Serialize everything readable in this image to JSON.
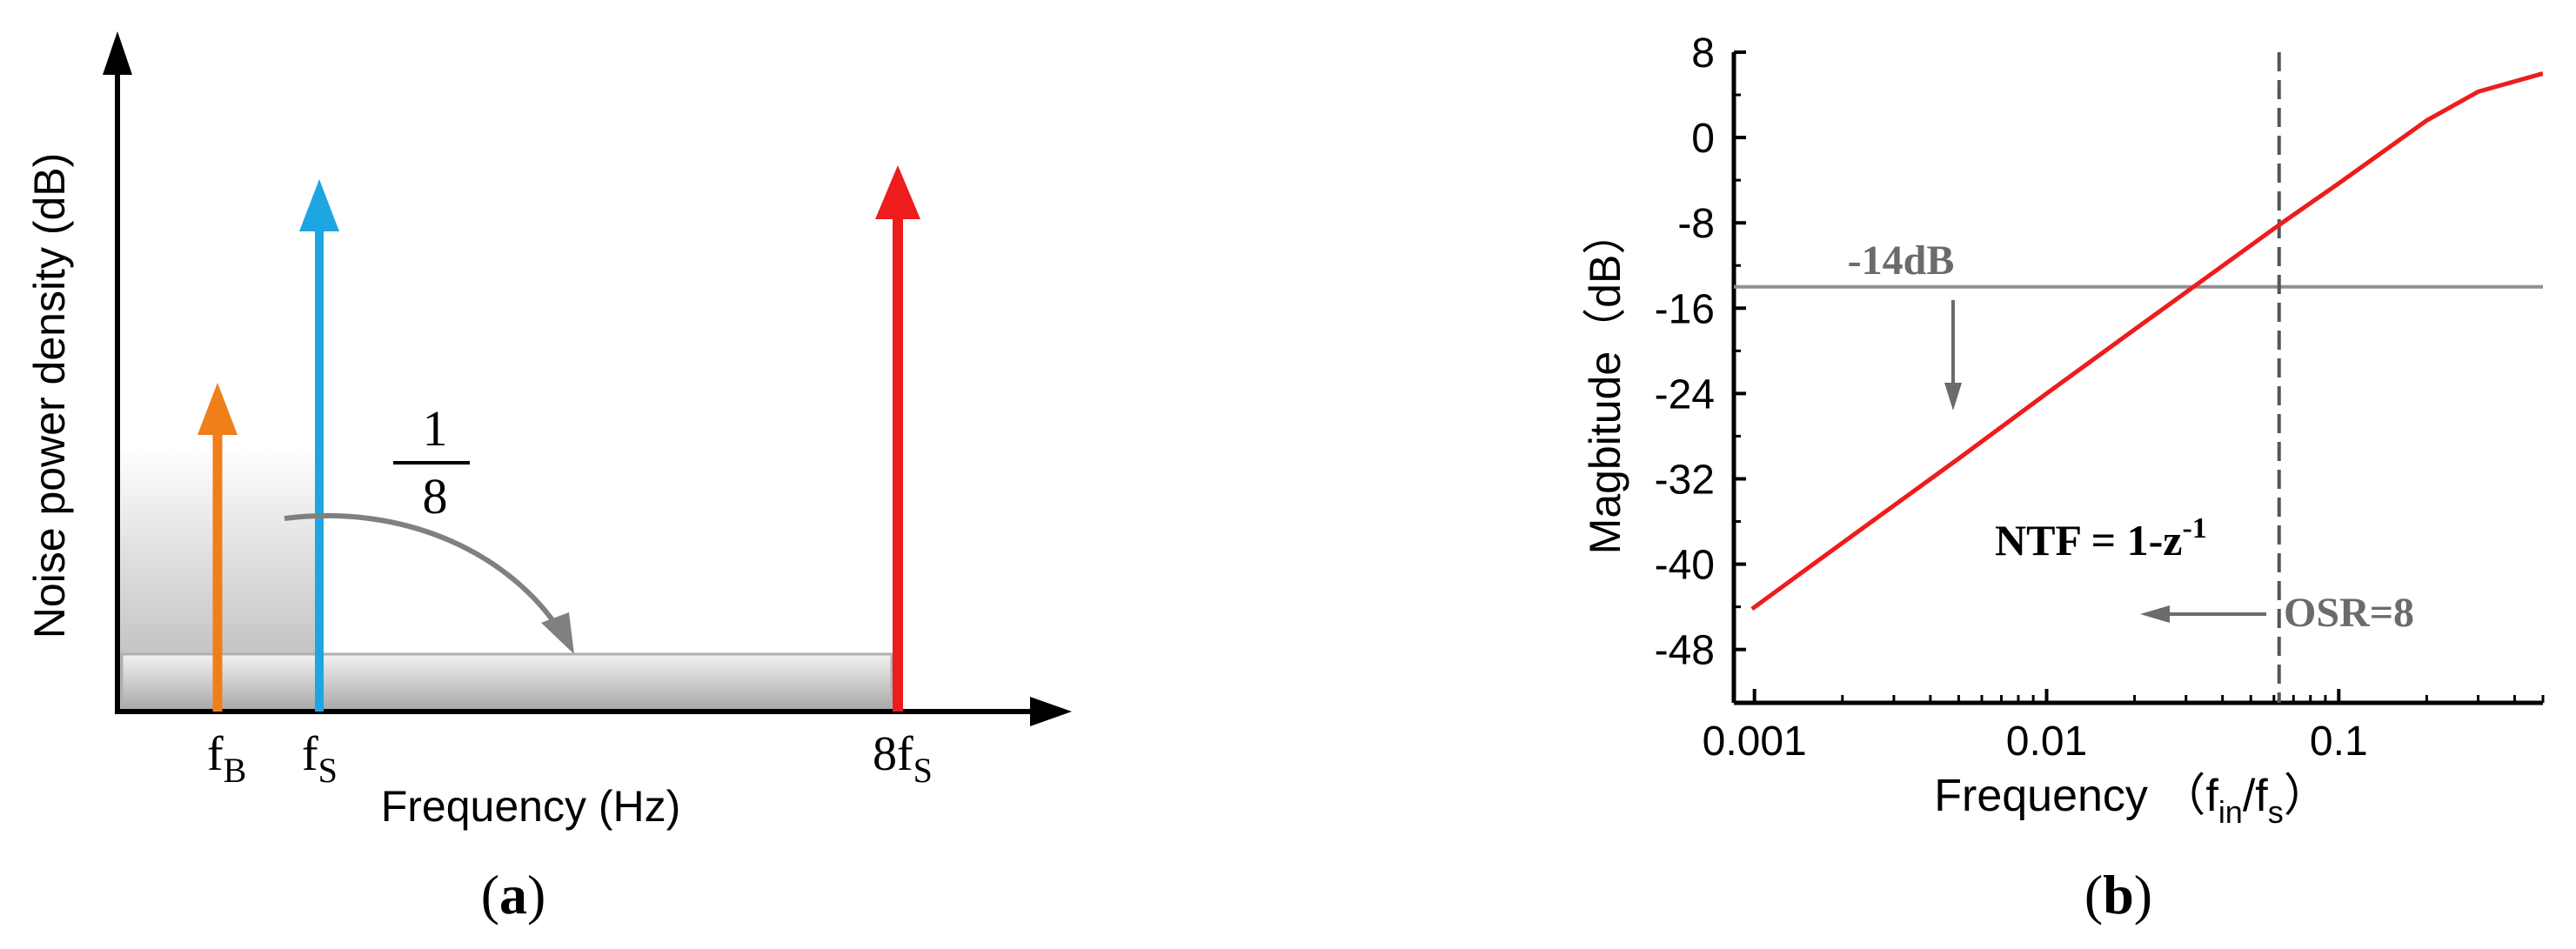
{
  "panel_a": {
    "label": "(a)",
    "xlabel": "Frequency (Hz)",
    "ylabel": "Noise power density  (dB)",
    "fraction": {
      "numerator": "1",
      "denominator": "8"
    },
    "marks": [
      {
        "base": "f",
        "sub": "B"
      },
      {
        "base": "f",
        "sub": "S"
      },
      {
        "base": "8f",
        "sub": "S"
      }
    ],
    "colors": {
      "fB": "#f07f1a",
      "fS": "#1ea6e3",
      "8fS": "#ee1c1c",
      "curve_arrow": "#808080"
    }
  },
  "panel_b": {
    "label": "(b)",
    "annotations": {
      "db14": "-14dB",
      "ntf_main": "NTF = 1-z",
      "ntf_sup": "-1",
      "osr": "OSR=8"
    },
    "xlabel_main": "Frequency （f",
    "xlabel_sub1": "in",
    "xlabel_mid": "/f",
    "xlabel_sub2": "s",
    "xlabel_end": "）",
    "ylabel": "Magbitude（dB）"
  },
  "chart_data": [
    {
      "type": "line",
      "title": "",
      "xlabel": "Frequency（fin/fs）",
      "ylabel": "Magbitude（dB）",
      "xscale": "log",
      "xlim": [
        0.00085,
        0.5
      ],
      "ylim": [
        -53,
        8
      ],
      "xticks": [
        0.001,
        0.01,
        0.1
      ],
      "xtick_labels": [
        "0.001",
        "0.01",
        "0.1"
      ],
      "yticks": [
        8,
        0,
        -8,
        -16,
        -24,
        -32,
        -40,
        -48
      ],
      "ytick_labels": [
        "8",
        "0",
        "-8",
        "-16",
        "-24",
        "-32",
        "-40",
        "-48"
      ],
      "series": [
        {
          "name": "NTF = 1-z-1",
          "color": "#ee1c1c",
          "x": [
            0.00098,
            0.002,
            0.005,
            0.01,
            0.02,
            0.0625,
            0.1,
            0.2,
            0.3,
            0.5
          ],
          "y": [
            -44.2,
            -38.0,
            -30.1,
            -24.0,
            -18.0,
            -8.2,
            -4.3,
            1.6,
            4.3,
            6.0
          ]
        }
      ],
      "reference_lines": [
        {
          "orientation": "horizontal",
          "y": -14,
          "color": "#909090",
          "label": "-14dB"
        },
        {
          "orientation": "vertical",
          "x": 0.0625,
          "style": "dashed",
          "color": "#555555",
          "label": "OSR=8"
        }
      ],
      "grid": false,
      "legend": "none"
    }
  ]
}
